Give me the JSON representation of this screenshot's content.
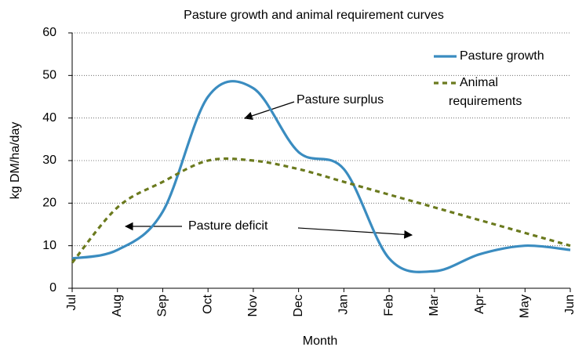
{
  "chart_data": {
    "type": "line",
    "title": "Pasture growth and animal requirement curves",
    "x_label": "Month",
    "y_label": "kg DM/ha/day",
    "categories": [
      "Jul",
      "Aug",
      "Sep",
      "Oct",
      "Nov",
      "Dec",
      "Jan",
      "Feb",
      "Mar",
      "Apr",
      "May",
      "Jun"
    ],
    "series": [
      {
        "name": "Pasture growth",
        "color": "#3a8cc0",
        "style": "solid",
        "values": [
          7,
          9,
          18,
          45,
          47,
          32,
          28,
          7,
          4,
          8,
          10,
          9
        ]
      },
      {
        "name": "Animal requirements",
        "color": "#6b7a1e",
        "style": "dashed",
        "values": [
          6,
          19,
          25,
          30,
          30,
          28,
          25,
          22,
          19,
          16,
          13,
          10
        ]
      }
    ],
    "ylim": [
      0,
      60
    ],
    "yticks": [
      0,
      10,
      20,
      30,
      40,
      50,
      60
    ],
    "grid": true,
    "annotations": [
      {
        "text": "Pasture surplus"
      },
      {
        "text": "Pasture deficit"
      }
    ]
  }
}
